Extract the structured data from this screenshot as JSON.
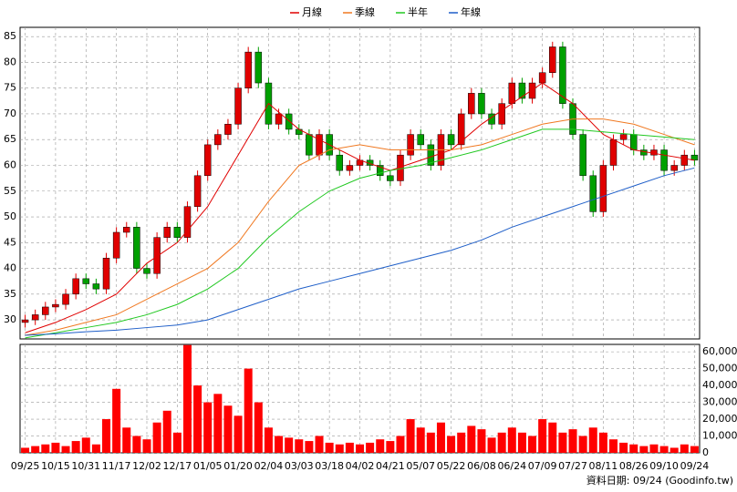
{
  "chart_data": {
    "type": "candlestick",
    "categories": [
      "09/25",
      null,
      null,
      "10/15",
      null,
      null,
      "10/31",
      null,
      null,
      "11/17",
      null,
      null,
      "12/02",
      null,
      null,
      "12/17",
      null,
      null,
      "01/05",
      null,
      null,
      "01/20",
      null,
      null,
      "02/04",
      null,
      null,
      "03/03",
      null,
      null,
      "03/18",
      null,
      null,
      "04/02",
      null,
      null,
      "04/21",
      null,
      null,
      "05/07",
      null,
      null,
      "05/22",
      null,
      null,
      "06/08",
      null,
      null,
      "06/24",
      null,
      null,
      "07/09",
      null,
      null,
      "07/27",
      null,
      null,
      "08/11",
      null,
      null,
      "08/26",
      null,
      null,
      "09/10",
      null,
      null,
      "09/24"
    ],
    "open": [
      29.5,
      30,
      31,
      32.5,
      33,
      35,
      38,
      37,
      36,
      42,
      47,
      48,
      40,
      39,
      46,
      48,
      46,
      52,
      58,
      64,
      66,
      68,
      75,
      82,
      76,
      68,
      70,
      67,
      66,
      62,
      66,
      62,
      59,
      60,
      61,
      60,
      58,
      57,
      62,
      66,
      64,
      60,
      66,
      64,
      70,
      74,
      70,
      68,
      72,
      76,
      73,
      76,
      78,
      83,
      72,
      66,
      58,
      51,
      60,
      65,
      66,
      63,
      62,
      63,
      59,
      60,
      62
    ],
    "high": [
      31,
      32,
      33.5,
      34,
      36,
      39,
      39,
      38,
      43,
      48,
      49,
      49,
      41,
      47,
      49,
      49,
      53,
      59,
      65,
      67,
      69,
      76,
      83,
      83,
      77,
      71,
      71,
      68,
      67,
      67,
      67,
      63,
      61,
      62,
      62,
      61,
      59,
      63,
      67,
      67,
      65,
      67,
      67,
      71,
      75,
      75,
      71,
      73,
      77,
      77,
      77,
      79,
      84,
      84,
      73,
      67,
      59,
      61,
      66,
      67,
      67,
      64,
      64,
      64,
      61,
      63,
      63
    ],
    "low": [
      28.5,
      29,
      30,
      31.5,
      32,
      34,
      36,
      35,
      35,
      41,
      46,
      39,
      38,
      38,
      45,
      45,
      45,
      51,
      57,
      63,
      65,
      67,
      74,
      75,
      67,
      67,
      66,
      65,
      61,
      61,
      61,
      58,
      58,
      59,
      59,
      57,
      56,
      56,
      61,
      63,
      59,
      59,
      63,
      63,
      69,
      69,
      67,
      67,
      71,
      72,
      72,
      75,
      77,
      71,
      65,
      57,
      50,
      50,
      59,
      64,
      62,
      61,
      61,
      58,
      58,
      59,
      60
    ],
    "close": [
      30,
      31,
      32.5,
      33,
      35,
      38,
      37,
      36,
      42,
      47,
      48,
      40,
      39,
      46,
      48,
      46,
      52,
      58,
      64,
      66,
      68,
      75,
      82,
      76,
      68,
      70,
      67,
      66,
      62,
      66,
      62,
      59,
      60,
      61,
      60,
      58,
      57,
      62,
      66,
      64,
      60,
      66,
      64,
      70,
      74,
      70,
      68,
      72,
      76,
      73,
      76,
      78,
      83,
      72,
      66,
      58,
      51,
      60,
      65,
      66,
      63,
      62,
      63,
      59,
      60,
      62,
      61
    ],
    "up_color": "#e00000",
    "down_color": "#00a000",
    "series": [
      {
        "name": "月線",
        "color": "#e00000",
        "x": [
          0,
          3,
          6,
          9,
          12,
          15,
          18,
          21,
          24,
          27,
          30,
          33,
          36,
          39,
          42,
          45,
          48,
          51,
          54,
          57,
          60,
          63,
          66
        ],
        "values": [
          27.5,
          29.5,
          32,
          35,
          41,
          45,
          52,
          62,
          72,
          67,
          64,
          61,
          59,
          61,
          63,
          68,
          72,
          76,
          72,
          66,
          63,
          62,
          61
        ]
      },
      {
        "name": "季線",
        "color": "#f07820",
        "x": [
          0,
          3,
          6,
          9,
          12,
          15,
          18,
          21,
          24,
          27,
          30,
          33,
          36,
          39,
          42,
          45,
          48,
          51,
          54,
          57,
          60,
          63,
          66
        ],
        "values": [
          27,
          28,
          29.5,
          31,
          34,
          37,
          40,
          45,
          53,
          60,
          63,
          64,
          63,
          63,
          63,
          64,
          66,
          68,
          69,
          69,
          68,
          66,
          64
        ]
      },
      {
        "name": "半年",
        "color": "#20c820",
        "x": [
          0,
          3,
          6,
          9,
          12,
          15,
          18,
          21,
          24,
          27,
          30,
          33,
          36,
          39,
          42,
          45,
          48,
          51,
          54,
          57,
          60,
          63,
          66
        ],
        "values": [
          26.5,
          27.5,
          28.5,
          29.5,
          31,
          33,
          36,
          40,
          46,
          51,
          55,
          57.5,
          59,
          60,
          61.5,
          63,
          65,
          67,
          67,
          66.5,
          66,
          65.5,
          65
        ]
      },
      {
        "name": "年線",
        "color": "#1e5ec8",
        "x": [
          0,
          3,
          6,
          9,
          12,
          15,
          18,
          21,
          24,
          27,
          30,
          33,
          36,
          39,
          42,
          45,
          48,
          51,
          54,
          57,
          60,
          63,
          66
        ],
        "values": [
          27,
          27.3,
          27.7,
          28,
          28.5,
          29,
          30,
          32,
          34,
          36,
          37.5,
          39,
          40.5,
          42,
          43.5,
          45.5,
          48,
          50,
          52,
          54,
          56,
          58,
          59.5
        ]
      }
    ],
    "ylim": [
      26.3,
      86.8
    ],
    "yticks": [
      30,
      35,
      40,
      45,
      50,
      55,
      60,
      65,
      70,
      75,
      80,
      85
    ],
    "grid": true,
    "volume": {
      "type": "bar",
      "color": "#ff0000",
      "values": [
        3000,
        4000,
        5000,
        6000,
        4000,
        7000,
        9000,
        5000,
        20000,
        38000,
        15000,
        10000,
        8000,
        18000,
        25000,
        12000,
        64000,
        40000,
        30000,
        35000,
        28000,
        22000,
        50000,
        30000,
        15000,
        10000,
        9000,
        8000,
        7000,
        10000,
        6000,
        5000,
        6000,
        5000,
        6000,
        8000,
        7000,
        10000,
        20000,
        15000,
        12000,
        18000,
        10000,
        12000,
        16000,
        14000,
        9000,
        12000,
        15000,
        12000,
        10000,
        20000,
        18000,
        12000,
        14000,
        10000,
        15000,
        12000,
        8000,
        6000,
        5000,
        4000,
        5000,
        4000,
        3000,
        5000,
        4000
      ],
      "ylim": [
        0,
        64400
      ],
      "yticks": [
        0,
        {
          "value": 10000,
          "label": "10,000"
        },
        {
          "value": 20000,
          "label": "20,000"
        },
        {
          "value": 30000,
          "label": "30,000"
        },
        {
          "value": 40000,
          "label": "40,000"
        },
        {
          "value": 50000,
          "label": "50,000"
        },
        {
          "value": 60000,
          "label": "60,000"
        }
      ]
    },
    "source": "資料日期: 09/24 (Goodinfo.tw)"
  }
}
